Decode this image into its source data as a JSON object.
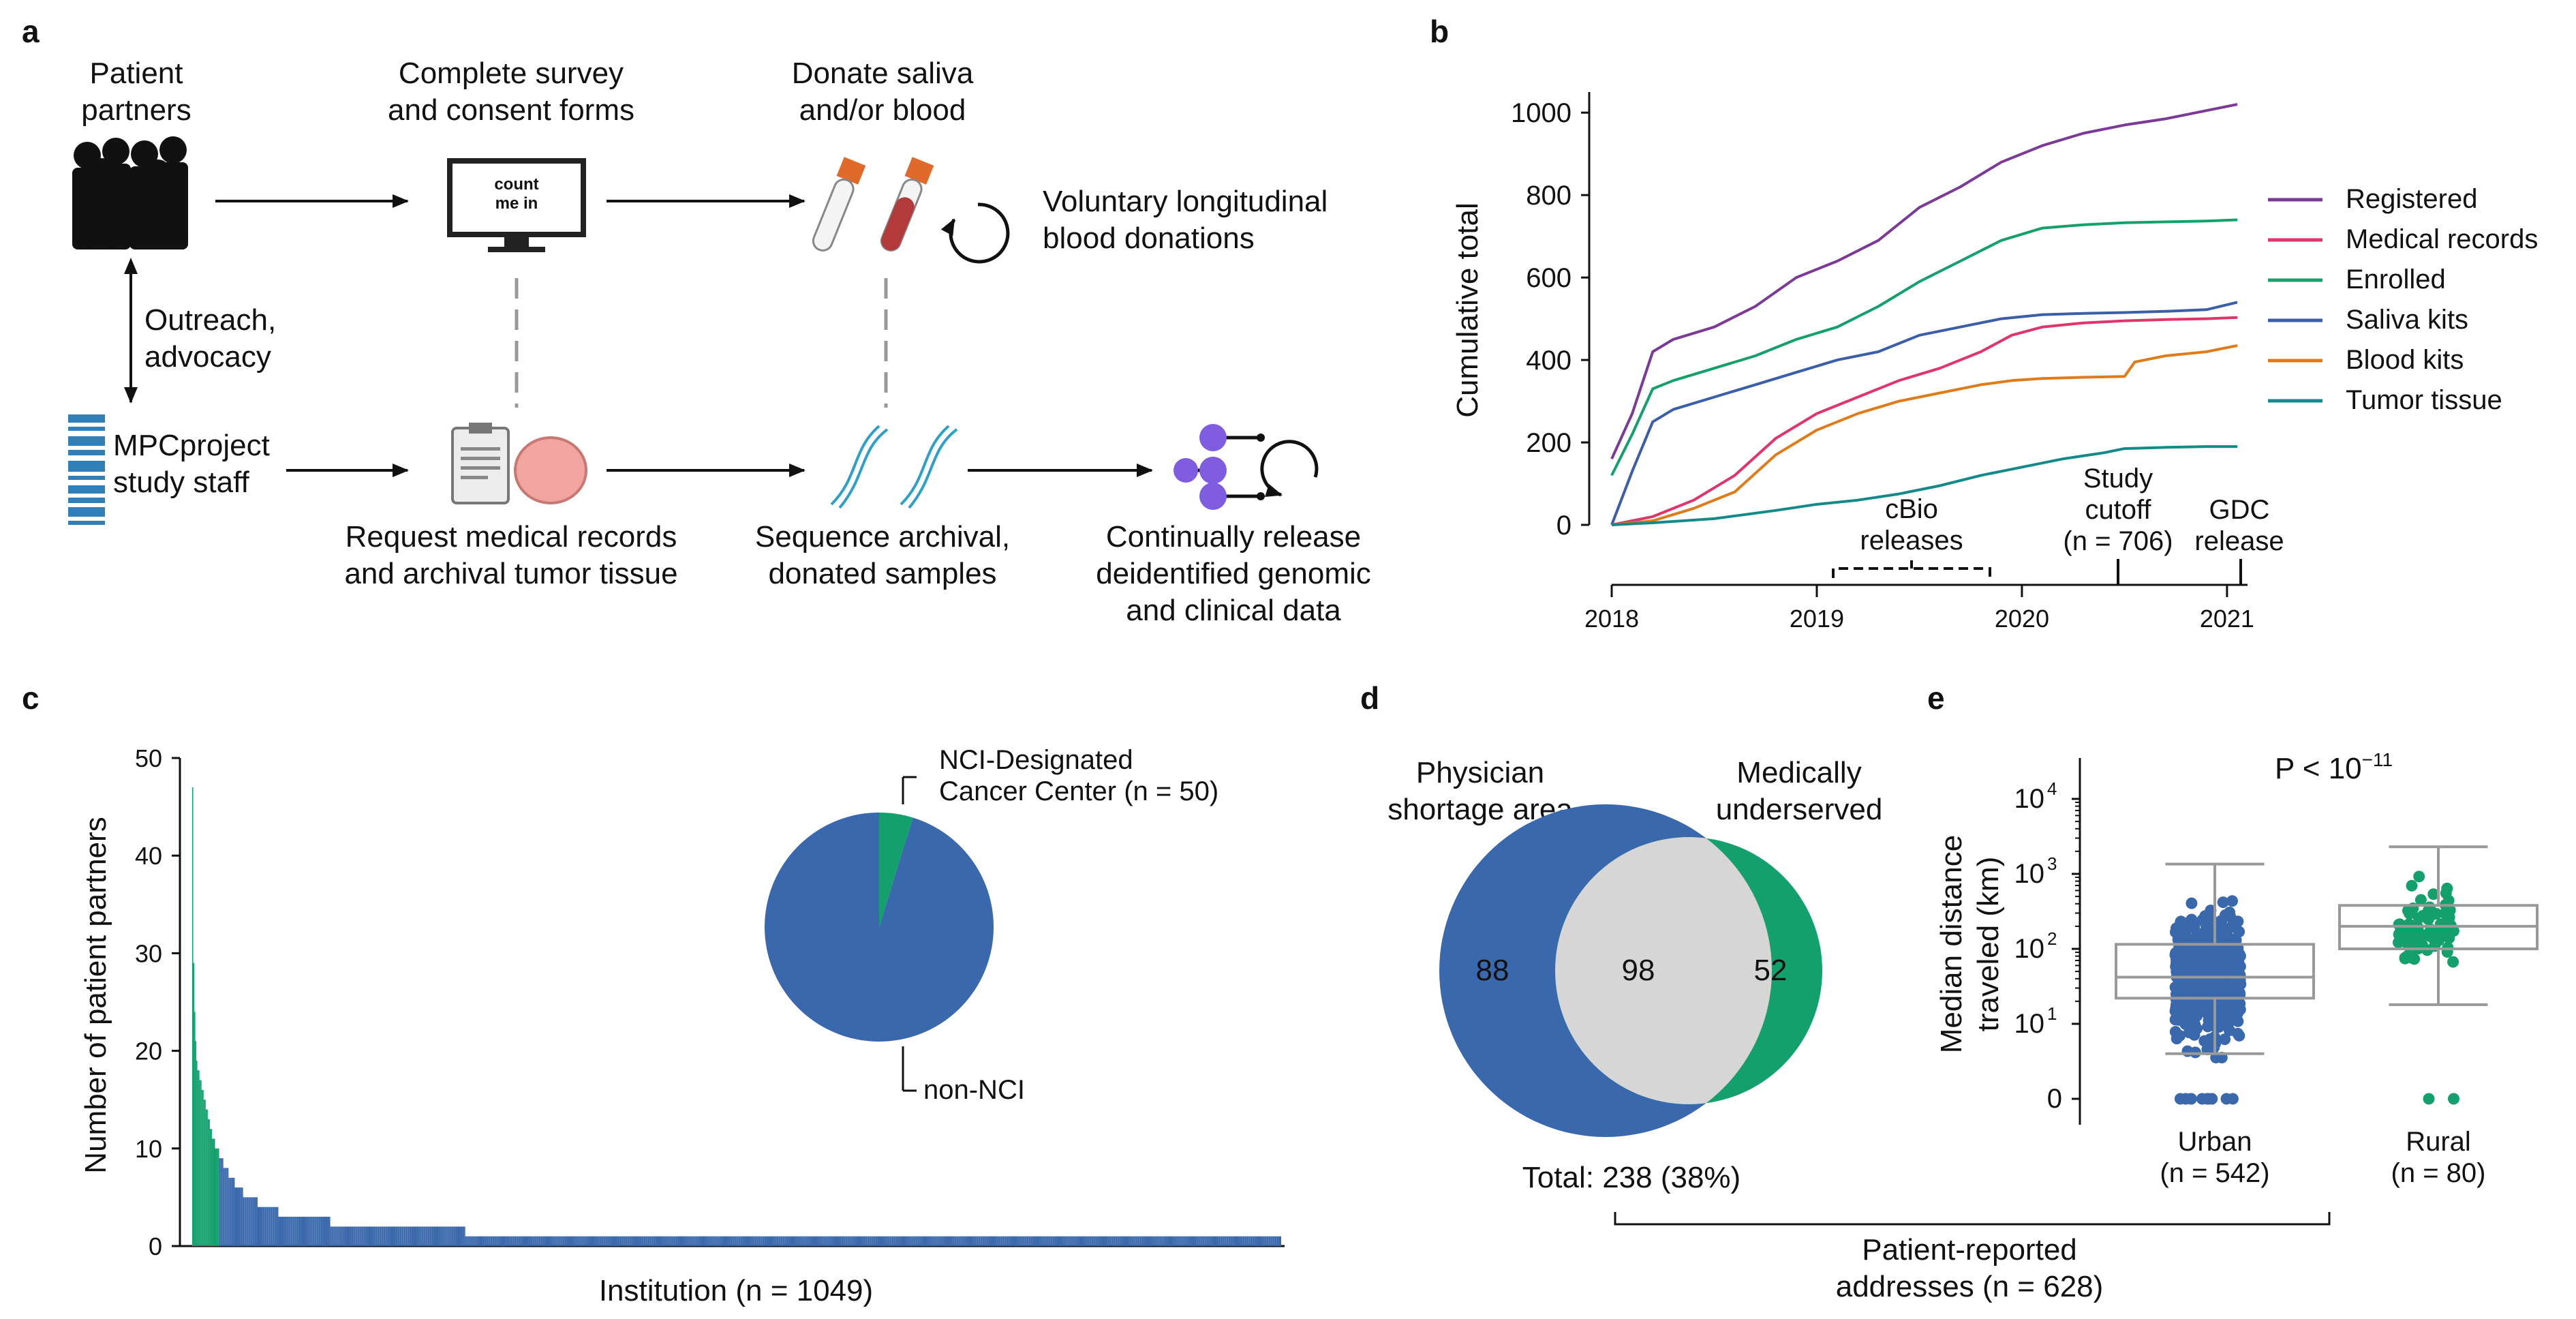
{
  "colors": {
    "registered": "#7b3a96",
    "medical_records": "#e0356a",
    "enrolled": "#13a06b",
    "saliva_kits": "#3a5ea8",
    "blood_kits": "#e07b1a",
    "tumor_tissue": "#138a8a",
    "blue": "#3a68ac",
    "green": "#14a06d",
    "gray_venn": "#d6d6d6",
    "purple_icon": "#7f5ce0"
  },
  "panel_a": {
    "label": "a",
    "patient_partners": [
      "Patient",
      "partners"
    ],
    "survey": [
      "Complete survey",
      "and consent forms"
    ],
    "monitor_text": [
      "count",
      "me in"
    ],
    "donate": [
      "Donate saliva",
      "and/or blood"
    ],
    "voluntary": [
      "Voluntary longitudinal",
      "blood donations"
    ],
    "outreach": [
      "Outreach,",
      "advocacy"
    ],
    "staff": [
      "MPCproject",
      "study staff"
    ],
    "request": [
      "Request medical records",
      "and archival tumor tissue"
    ],
    "sequence": [
      "Sequence archival,",
      "donated samples"
    ],
    "release": [
      "Continually release",
      "deidentified genomic",
      "and clinical data"
    ]
  },
  "panel_b": {
    "label": "b",
    "annotations": {
      "cbio": [
        "cBio",
        "releases"
      ],
      "cutoff": [
        "Study",
        "cutoff",
        "(n = 706)"
      ],
      "gdc": [
        "GDC",
        "release"
      ]
    }
  },
  "panel_c": {
    "label": "c",
    "pie_labels": {
      "nci": [
        "NCI-Designated",
        "Cancer Center (n = 50)"
      ],
      "non": "non-NCI"
    }
  },
  "panel_d": {
    "label": "d",
    "left_title": [
      "Physician",
      "shortage area"
    ],
    "right_title": [
      "Medically",
      "underserved"
    ],
    "left_only": "88",
    "overlap": "98",
    "right_only": "52",
    "total": "Total: 238 (38%)"
  },
  "panel_e": {
    "label": "e",
    "pvalue": "P < 10",
    "pvalue_exp": "−11",
    "groups": [
      {
        "name": "Urban",
        "n_label": "(n = 542)"
      },
      {
        "name": "Rural",
        "n_label": "(n = 80)"
      }
    ],
    "bracket_label": [
      "Patient-reported",
      "addresses (n = 628)"
    ]
  },
  "chart_data": [
    {
      "type": "line",
      "panel": "b",
      "ylabel": "Cumulative total",
      "ylim": [
        0,
        1050
      ],
      "yticks": [
        0,
        200,
        400,
        600,
        800,
        1000
      ],
      "xlim": [
        2018.0,
        2021.1
      ],
      "xticks": [
        2018,
        2019,
        2020,
        2021
      ],
      "legend_position": "right",
      "series": [
        {
          "name": "Registered",
          "x": [
            2018.0,
            2018.1,
            2018.2,
            2018.3,
            2018.5,
            2018.7,
            2018.9,
            2019.1,
            2019.3,
            2019.5,
            2019.7,
            2019.9,
            2020.1,
            2020.3,
            2020.5,
            2020.7,
            2020.9,
            2021.05
          ],
          "y": [
            160,
            270,
            420,
            450,
            480,
            530,
            600,
            640,
            690,
            770,
            820,
            880,
            920,
            950,
            970,
            985,
            1005,
            1020
          ]
        },
        {
          "name": "Medical records",
          "x": [
            2018.0,
            2018.2,
            2018.4,
            2018.6,
            2018.8,
            2019.0,
            2019.2,
            2019.4,
            2019.6,
            2019.8,
            2019.95,
            2020.1,
            2020.3,
            2020.5,
            2020.7,
            2020.9,
            2021.05
          ],
          "y": [
            0,
            20,
            60,
            120,
            210,
            270,
            310,
            350,
            380,
            420,
            460,
            480,
            490,
            495,
            498,
            500,
            503
          ]
        },
        {
          "name": "Enrolled",
          "x": [
            2018.0,
            2018.1,
            2018.2,
            2018.3,
            2018.5,
            2018.7,
            2018.9,
            2019.1,
            2019.3,
            2019.5,
            2019.7,
            2019.9,
            2020.1,
            2020.3,
            2020.5,
            2020.7,
            2020.9,
            2021.05
          ],
          "y": [
            120,
            220,
            330,
            350,
            380,
            410,
            450,
            480,
            530,
            590,
            640,
            690,
            720,
            728,
            733,
            735,
            737,
            740
          ]
        },
        {
          "name": "Saliva kits",
          "x": [
            2018.0,
            2018.1,
            2018.2,
            2018.3,
            2018.5,
            2018.7,
            2018.9,
            2019.1,
            2019.3,
            2019.5,
            2019.7,
            2019.9,
            2020.1,
            2020.3,
            2020.5,
            2020.7,
            2020.9,
            2021.05
          ],
          "y": [
            0,
            130,
            250,
            280,
            310,
            340,
            370,
            400,
            420,
            460,
            480,
            500,
            510,
            513,
            515,
            518,
            522,
            540
          ]
        },
        {
          "name": "Blood kits",
          "x": [
            2018.0,
            2018.2,
            2018.4,
            2018.6,
            2018.8,
            2019.0,
            2019.2,
            2019.4,
            2019.6,
            2019.8,
            2019.95,
            2020.1,
            2020.3,
            2020.5,
            2020.55,
            2020.7,
            2020.9,
            2021.05
          ],
          "y": [
            0,
            10,
            40,
            80,
            170,
            230,
            270,
            300,
            320,
            340,
            350,
            355,
            358,
            360,
            395,
            410,
            420,
            435
          ]
        },
        {
          "name": "Tumor tissue",
          "x": [
            2018.0,
            2018.2,
            2018.5,
            2018.8,
            2019.0,
            2019.2,
            2019.4,
            2019.6,
            2019.8,
            2020.0,
            2020.2,
            2020.4,
            2020.5,
            2020.7,
            2020.9,
            2021.05
          ],
          "y": [
            0,
            5,
            15,
            35,
            50,
            60,
            75,
            95,
            120,
            140,
            160,
            175,
            185,
            188,
            190,
            190
          ]
        }
      ]
    },
    {
      "type": "bar",
      "panel": "c",
      "xlabel": "Institution (n = 1049)",
      "ylabel": "Number of patient partners",
      "ylim": [
        0,
        50
      ],
      "yticks": [
        0,
        10,
        20,
        30,
        40,
        50
      ],
      "note": "bars sorted by count; counts per institution estimated from the image (1049 institutions)",
      "count_groups": [
        {
          "value": 47,
          "institutions": 1,
          "nci": true
        },
        {
          "value": 29,
          "institutions": 1,
          "nci": true
        },
        {
          "value": 24,
          "institutions": 1,
          "nci": true
        },
        {
          "value": 21,
          "institutions": 1,
          "nci": true
        },
        {
          "value": 19,
          "institutions": 1,
          "nci": true
        },
        {
          "value": 18,
          "institutions": 2,
          "nci": true
        },
        {
          "value": 17,
          "institutions": 2,
          "nci": true
        },
        {
          "value": 16,
          "institutions": 2,
          "nci": true
        },
        {
          "value": 15,
          "institutions": 2,
          "nci": true
        },
        {
          "value": 14,
          "institutions": 2,
          "nci": true
        },
        {
          "value": 13,
          "institutions": 2,
          "nci": true
        },
        {
          "value": 12,
          "institutions": 2,
          "nci": true
        },
        {
          "value": 11,
          "institutions": 3,
          "nci": true
        },
        {
          "value": 10,
          "institutions": 4,
          "nci": true
        },
        {
          "value": 9,
          "institutions": 4,
          "nci": false
        },
        {
          "value": 8,
          "institutions": 5,
          "nci": false
        },
        {
          "value": 7,
          "institutions": 6,
          "nci": false
        },
        {
          "value": 6,
          "institutions": 8,
          "nci": false
        },
        {
          "value": 5,
          "institutions": 14,
          "nci": false
        },
        {
          "value": 4,
          "institutions": 20,
          "nci": false
        },
        {
          "value": 3,
          "institutions": 50,
          "nci": false
        },
        {
          "value": 2,
          "institutions": 130,
          "nci": false
        },
        {
          "value": 1,
          "institutions": 786,
          "nci": false
        }
      ]
    },
    {
      "type": "pie",
      "panel": "c-inset",
      "labels": [
        "NCI-Designated Cancer Center (n = 50)",
        "non-NCI"
      ],
      "values": [
        50,
        999
      ]
    },
    {
      "type": "scatter",
      "panel": "e",
      "ylabel": "Median distance traveled (km)",
      "yscale": "symlog",
      "yticks": [
        "0",
        "10^1",
        "10^2",
        "10^3",
        "10^4"
      ],
      "categories": [
        "Urban",
        "Rural"
      ],
      "boxes": [
        {
          "group": "Urban",
          "whisker_low": 4,
          "q1": 22,
          "median": 42,
          "q3": 115,
          "whisker_high": 1350
        },
        {
          "group": "Rural",
          "whisker_low": 18,
          "q1": 100,
          "median": 200,
          "q3": 380,
          "whisker_high": 2300
        }
      ]
    }
  ]
}
